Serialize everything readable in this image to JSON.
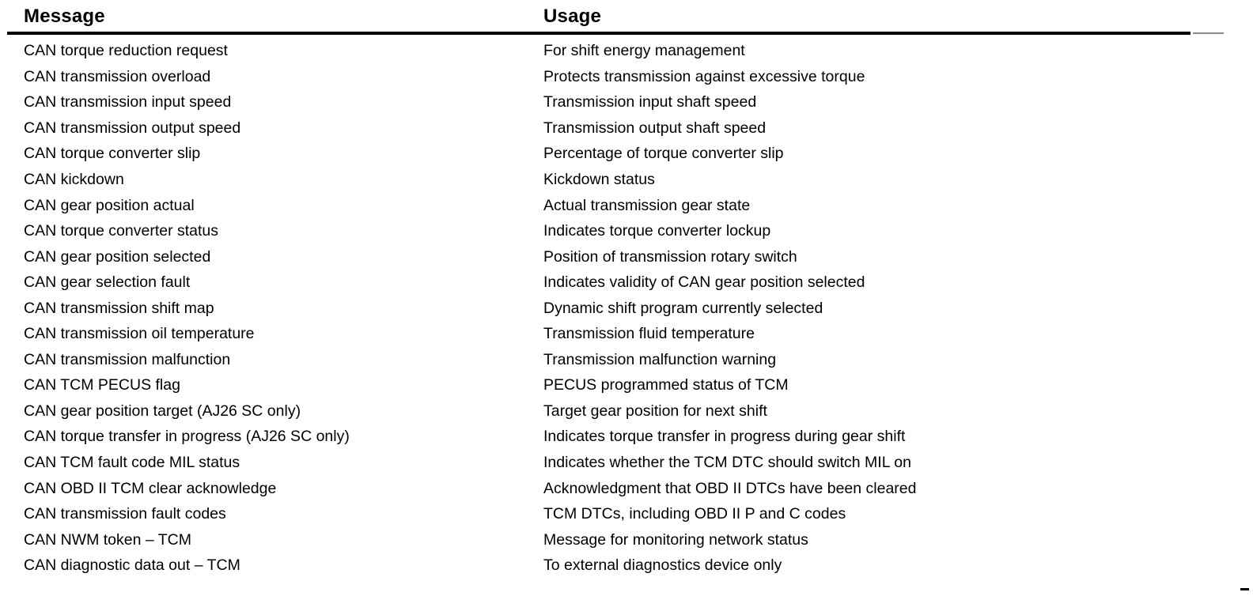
{
  "colors": {
    "background": "#ffffff",
    "text": "#000000",
    "rule": "#000000"
  },
  "table": {
    "columns": [
      "Message",
      "Usage"
    ],
    "rows": [
      {
        "message": "CAN torque reduction request",
        "usage": "For shift energy management"
      },
      {
        "message": "CAN transmission overload",
        "usage": "Protects transmission against excessive torque"
      },
      {
        "message": "CAN transmission input speed",
        "usage": "Transmission input shaft speed"
      },
      {
        "message": "CAN transmission output speed",
        "usage": "Transmission output shaft speed"
      },
      {
        "message": "CAN torque converter slip",
        "usage": "Percentage of torque converter slip"
      },
      {
        "message": "CAN kickdown",
        "usage": "Kickdown status"
      },
      {
        "message": "CAN gear position actual",
        "usage": "Actual transmission gear state"
      },
      {
        "message": "CAN torque converter status",
        "usage": "Indicates torque converter lockup"
      },
      {
        "message": "CAN gear position selected",
        "usage": "Position of transmission rotary switch"
      },
      {
        "message": "CAN gear selection fault",
        "usage": "Indicates validity of CAN gear position selected"
      },
      {
        "message": "CAN transmission shift map",
        "usage": "Dynamic shift program currently selected"
      },
      {
        "message": "CAN transmission oil temperature",
        "usage": "Transmission fluid temperature"
      },
      {
        "message": "CAN transmission malfunction",
        "usage": "Transmission malfunction warning"
      },
      {
        "message": "CAN TCM PECUS flag",
        "usage": "PECUS programmed status of TCM"
      },
      {
        "message": "CAN gear position target (AJ26 SC only)",
        "usage": "Target gear position for next shift"
      },
      {
        "message": "CAN torque transfer in progress (AJ26 SC only)",
        "usage": "Indicates torque transfer in progress during gear shift"
      },
      {
        "message": "CAN TCM fault code MIL status",
        "usage": "Indicates whether the TCM DTC should switch MIL on"
      },
      {
        "message": "CAN OBD II TCM clear acknowledge",
        "usage": "Acknowledgment that OBD II DTCs have been cleared"
      },
      {
        "message": "CAN transmission fault codes",
        "usage": "TCM DTCs, including OBD II P and C codes"
      },
      {
        "message": "CAN NWM token – TCM",
        "usage": "Message for monitoring network status"
      },
      {
        "message": "CAN diagnostic data out – TCM",
        "usage": "To external diagnostics device only"
      }
    ]
  }
}
